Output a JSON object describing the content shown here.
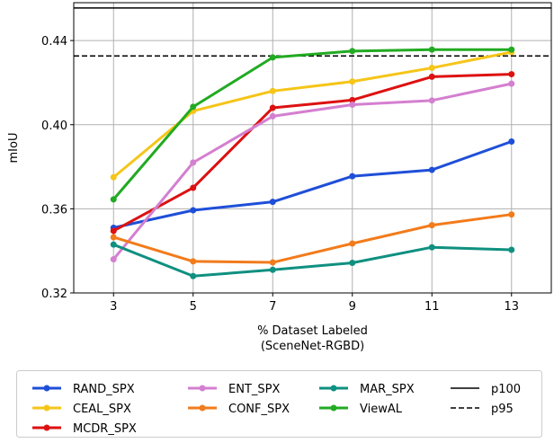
{
  "chart_data": {
    "type": "line",
    "x": [
      3,
      5,
      7,
      9,
      11,
      13
    ],
    "xticks": [
      "3",
      "5",
      "7",
      "9",
      "11",
      "13"
    ],
    "xlim": [
      2,
      14
    ],
    "ylim": [
      0.32,
      0.458
    ],
    "yticks": [
      "0.32",
      "0.36",
      "0.40",
      "0.44"
    ],
    "ytick_values": [
      0.32,
      0.36,
      0.4,
      0.44
    ],
    "xlabel": "% Dataset Labeled",
    "xlabel2": "(SceneNet-RGBD)",
    "ylabel": "mIoU",
    "grid": true,
    "series": [
      {
        "name": "RAND_SPX",
        "color": "#1f4fd8",
        "values": [
          0.351,
          0.3593,
          0.3633,
          0.3755,
          0.3785,
          0.392
        ]
      },
      {
        "name": "CEAL_SPX",
        "color": "#f5c518",
        "values": [
          0.375,
          0.4065,
          0.416,
          0.4205,
          0.427,
          0.4345
        ]
      },
      {
        "name": "MCDR_SPX",
        "color": "#dd1111",
        "values": [
          0.3495,
          0.37,
          0.408,
          0.4117,
          0.4228,
          0.424
        ]
      },
      {
        "name": "ENT_SPX",
        "color": "#d47fd0",
        "values": [
          0.336,
          0.382,
          0.404,
          0.4095,
          0.4115,
          0.4195
        ]
      },
      {
        "name": "CONF_SPX",
        "color": "#f27b1b",
        "values": [
          0.3465,
          0.335,
          0.3345,
          0.3435,
          0.3522,
          0.3573
        ]
      },
      {
        "name": "MAR_SPX",
        "color": "#0f9080",
        "values": [
          0.343,
          0.328,
          0.331,
          0.3343,
          0.3417,
          0.3405
        ]
      },
      {
        "name": "ViewAL",
        "color": "#22aa22",
        "values": [
          0.3645,
          0.4085,
          0.432,
          0.435,
          0.4357,
          0.4357
        ]
      }
    ],
    "reference_lines": [
      {
        "name": "p100",
        "value": 0.4555,
        "style": "solid",
        "color": "#000000"
      },
      {
        "name": "p95",
        "value": 0.4327,
        "style": "dashed",
        "color": "#000000"
      }
    ],
    "legend": [
      [
        "RAND_SPX",
        "CEAL_SPX",
        "MCDR_SPX"
      ],
      [
        "ENT_SPX",
        "CONF_SPX"
      ],
      [
        "MAR_SPX",
        "ViewAL"
      ],
      [
        "p100",
        "p95"
      ]
    ],
    "legend_position": "bottom"
  }
}
